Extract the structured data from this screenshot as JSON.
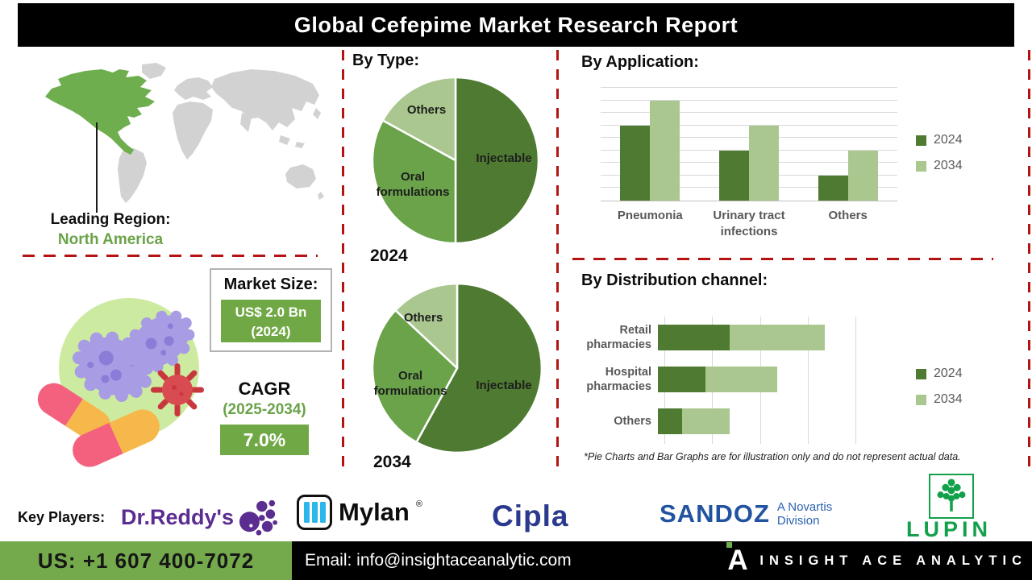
{
  "title": "Global Cefepime Market Research Report",
  "colors": {
    "dark_green": "#4e7a31",
    "mid_green": "#6aa349",
    "light_green": "#a9c78e",
    "accent_green": "#71a846",
    "footer_green": "#74aa4b",
    "dashed_red": "#b31312",
    "chart_text": "#595959",
    "na_green": "#6fae4e",
    "map_gray": "#d2d2d2"
  },
  "leading_region": {
    "label": "Leading Region:",
    "value": "North America"
  },
  "market_size": {
    "label": "Market Size:",
    "value": "US$ 2.0 Bn",
    "year": "(2024)"
  },
  "cagr": {
    "label": "CAGR",
    "period": "(2025-2034)",
    "value": "7.0%"
  },
  "disclaimer": "*Pie Charts and Bar Graphs are for illustration only and do not represent actual data.",
  "key_players": {
    "label": "Key Players:",
    "dr_reddys": "Dr.Reddy's",
    "mylan": "Mylan",
    "mylan_reg": "®",
    "cipla": "Cipla",
    "sandoz": "SANDOZ",
    "sandoz_sub1": "A Novartis",
    "sandoz_sub2": "Division",
    "lupin": "LUPIN"
  },
  "footer": {
    "phone": "US: +1 607 400-7072",
    "email": "Email: info@insightaceanalytic.com",
    "brand": "INSIGHT ACE ANALYTIC",
    "logo_letter": "A"
  },
  "chart_data": [
    {
      "type": "pie",
      "title": "By Type:",
      "year_label": "2024",
      "slices": [
        {
          "label": "Injectable",
          "value": 50
        },
        {
          "label": "Oral formulations",
          "value": 33
        },
        {
          "label": "Others",
          "value": 17
        }
      ],
      "colors": [
        "#4e7a31",
        "#6aa349",
        "#a9c78e"
      ],
      "legend_position": "none"
    },
    {
      "type": "pie",
      "year_label": "2034",
      "slices": [
        {
          "label": "Injectable",
          "value": 58
        },
        {
          "label": "Oral formulations",
          "value": 29
        },
        {
          "label": "Others",
          "value": 13
        }
      ],
      "colors": [
        "#4e7a31",
        "#6aa349",
        "#a9c78e"
      ],
      "legend_position": "none"
    },
    {
      "type": "bar",
      "title": "By Application:",
      "categories": [
        "Pneumonia",
        "Urinary tract infections",
        "Others"
      ],
      "series": [
        {
          "name": "2024",
          "values": [
            6,
            4,
            2
          ]
        },
        {
          "name": "2034",
          "values": [
            8,
            6,
            4
          ]
        }
      ],
      "ylim": [
        0,
        9
      ],
      "grid": true,
      "legend_position": "right"
    },
    {
      "type": "bar-horizontal-stacked",
      "title": "By Distribution channel:",
      "categories": [
        "Retail pharmacies",
        "Hospital pharmacies",
        "Others"
      ],
      "series": [
        {
          "name": "2024",
          "values": [
            1.5,
            1.0,
            0.5
          ]
        },
        {
          "name": "2034",
          "values": [
            2.0,
            1.5,
            1.0
          ]
        }
      ],
      "xlim": [
        0,
        4
      ],
      "grid": true,
      "legend_position": "right"
    }
  ]
}
